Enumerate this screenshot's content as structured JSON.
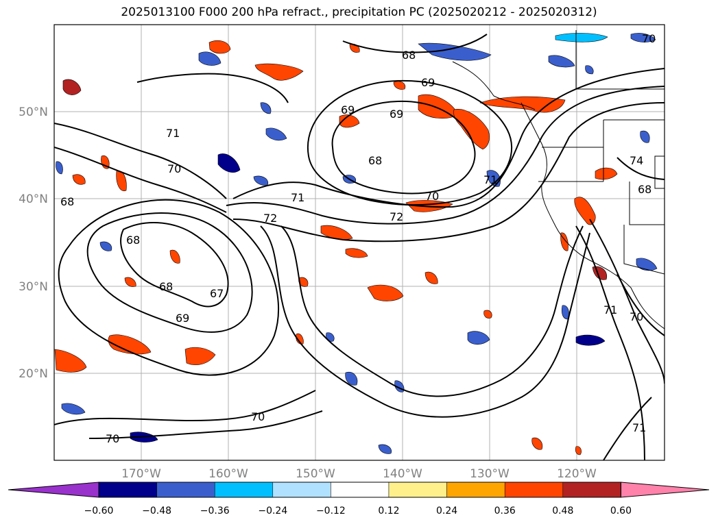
{
  "title": "2025013100 F000 200 hPa refract., precipitation PC (2025020212 - 2025020312)",
  "lat_labels": [
    "50°N",
    "40°N",
    "30°N",
    "20°N"
  ],
  "lon_labels": [
    "170°W",
    "160°W",
    "150°W",
    "140°W",
    "130°W",
    "120°W"
  ],
  "colorbar": {
    "tick_labels": [
      "−0.60",
      "−0.48",
      "−0.36",
      "−0.24",
      "−0.12",
      "0.12",
      "0.24",
      "0.36",
      "0.48",
      "0.60"
    ],
    "colors": [
      "#9932cc",
      "#00008b",
      "#3a5fcd",
      "#00bfff",
      "#b0e2ff",
      "#ffffff",
      "#fff08c",
      "#ffa500",
      "#ff4500",
      "#b22222",
      "#ff82ab"
    ]
  },
  "contour_labels": [
    "68",
    "69",
    "68",
    "69",
    "70",
    "71",
    "72",
    "71",
    "70",
    "68",
    "69",
    "68",
    "67",
    "68",
    "69",
    "70",
    "72",
    "71",
    "70",
    "74",
    "71",
    "70",
    "71",
    "70",
    "68"
  ]
}
